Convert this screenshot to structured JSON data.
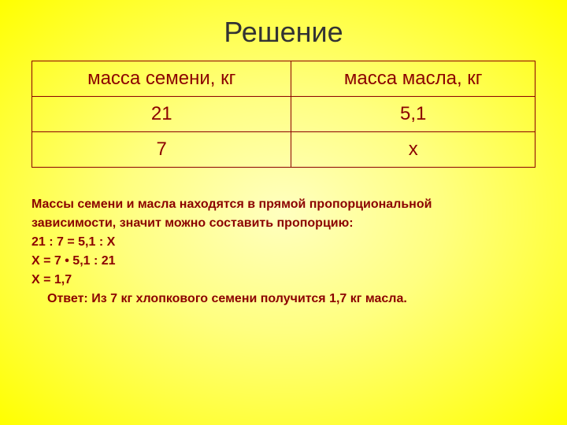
{
  "title": "Решение",
  "table": {
    "columns": [
      "масса семени, кг",
      "масса масла, кг"
    ],
    "rows": [
      [
        "21",
        "5,1"
      ],
      [
        "7",
        "х"
      ]
    ],
    "border_color": "#8b0000",
    "text_color": "#8b0000",
    "header_fontsize": 24,
    "cell_fontsize": 24
  },
  "solution": {
    "line1": "Массы семени и масла находятся в прямой пропорциональной",
    "line2": "зависимости, значит можно составить пропорцию:",
    "line3": "21 : 7 = 5,1 :  Х",
    "line4": "Х = 7 • 5,1 : 21",
    "line5": "Х = 1,7",
    "answer": "Ответ: Из 7 кг хлопкового семени получится 1,7 кг масла.",
    "text_color": "#8b0000",
    "fontsize": 16
  },
  "background": {
    "gradient_inner": "#ffffc0",
    "gradient_mid": "#ffff80",
    "gradient_outer": "#ffff00"
  },
  "title_style": {
    "color": "#333333",
    "fontsize": 36
  }
}
